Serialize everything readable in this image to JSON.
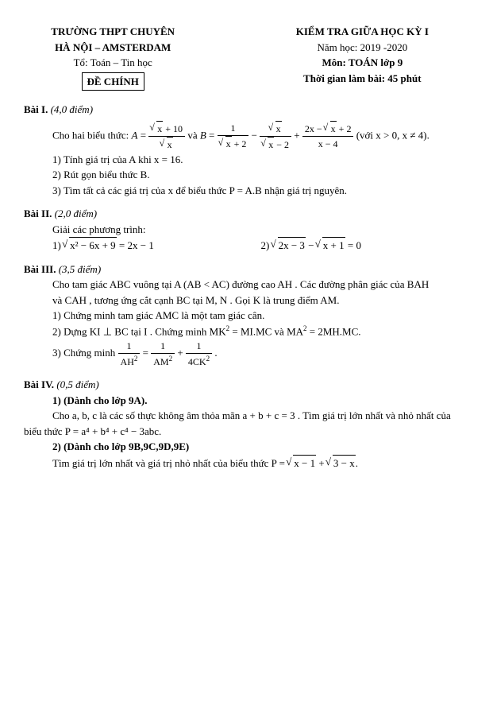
{
  "header": {
    "school": "TRƯỜNG THPT CHUYÊN",
    "campus": "HÀ NỘI – AMSTERDAM",
    "group": "Tổ: Toán – Tin học",
    "examlabel": "ĐỀ CHÍNH",
    "title": "KIỂM TRA GIỮA HỌC KỲ I",
    "year": "Năm học: 2019 -2020",
    "subject": "Môn: TOÁN lớp 9",
    "time": "Thời gian làm bài: 45 phút"
  },
  "p1": {
    "title": "Bài I.",
    "score": "(4,0 điểm)",
    "intro_a": "Cho hai biểu thức:",
    "intro_b": "và",
    "cond": "(với x > 0, x ≠ 4).",
    "q1": "1) Tính giá trị của A khi x = 16.",
    "q2": "2) Rút gọn biểu thức B.",
    "q3": "3) Tìm tất cả các giá trị của x để biểu thức P = A.B nhận giá trị nguyên."
  },
  "p2": {
    "title": "Bài II.",
    "score": "(2,0 điểm)",
    "intro": "Giải các phương trình:",
    "eq1_lhs_inner": "x² − 6x + 9",
    "eq1_rhs": " = 2x − 1",
    "eq2_a": "2x − 3",
    "eq2_b": "x + 1",
    "eq2_tail": " = 0"
  },
  "p3": {
    "title": "Bài III.",
    "score": "(3,5 điểm)",
    "l1a": "Cho tam giác ABC vuông tại A (AB < AC) đường cao AH . Các đường phân giác của BAH",
    "l1b": "và CAH , tương ứng cắt cạnh BC tại M, N . Gọi K là trung điểm AM.",
    "q1": "1) Chứng minh tam giác AMC là một tam giác cân.",
    "q2a": "2) Dựng KI ⊥ BC tại I . Chứng minh MK",
    "q2b": " = MI.MC và MA",
    "q2c": " = 2MH.MC.",
    "q3a": "3) Chứng minh ",
    "q3b": "."
  },
  "p4": {
    "title": "Bài IV.",
    "score": "(0,5 điểm)",
    "v1": "1) (Dành cho lớp 9A).",
    "v1a": "Cho a, b, c là các số thực không âm thỏa mãn a + b + c = 3 . Tìm giá trị lớn nhất và nhỏ nhất của",
    "v1b": "biểu thức P = a⁴ + b⁴ + c⁴ − 3abc.",
    "v2": "2) (Dành cho lớp 9B,9C,9D,9E)",
    "v2a_pre": "Tìm giá trị lớn nhất và giá trị nhỏ nhất của biểu thức P = ",
    "v2a_s1": "x − 1",
    "v2a_mid": " + ",
    "v2a_s2": "3 − x",
    "v2a_post": "."
  },
  "frac": {
    "A_num_s": "x",
    "A_num_plus": " + 10",
    "A_den_s": "x",
    "B1_num": "1",
    "B1_den_s": "x",
    "B1_den_plus": " + 2",
    "B2_num_s": "x",
    "B2_den_s": "x",
    "B2_den_minus": " − 2",
    "B3_num_pre": "2x − ",
    "B3_num_s": "x",
    "B3_num_post": " + 2",
    "B3_den": "x − 4",
    "P3_l": "AH",
    "P3_m": "AM",
    "P3_r": "4CK"
  }
}
